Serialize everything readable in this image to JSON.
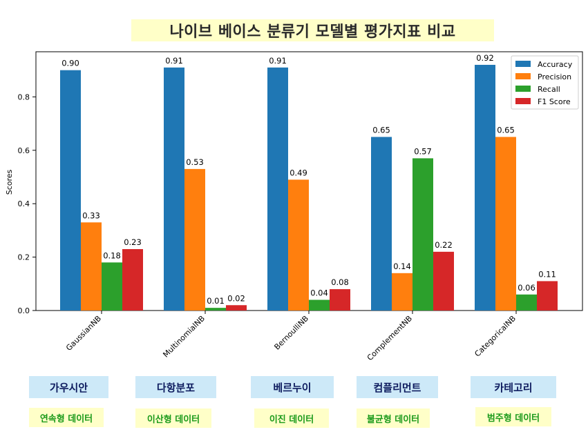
{
  "title": "나이브 베이스 분류기 모델별 평가지표 비교",
  "chart_data": {
    "type": "bar",
    "categories": [
      "GaussianNB",
      "MultinomialNB",
      "BernoulliNB",
      "ComplementNB",
      "CategoricalNB"
    ],
    "series": [
      {
        "name": "Accuracy",
        "color": "#1f77b4",
        "values": [
          0.9,
          0.91,
          0.91,
          0.65,
          0.92
        ],
        "labels": [
          "0.90",
          "0.91",
          "0.91",
          "0.65",
          "0.92"
        ]
      },
      {
        "name": "Precision",
        "color": "#ff7f0e",
        "values": [
          0.33,
          0.53,
          0.49,
          0.14,
          0.65
        ],
        "labels": [
          "0.33",
          "0.53",
          "0.49",
          "0.14",
          "0.65"
        ]
      },
      {
        "name": "Recall",
        "color": "#2ca02c",
        "values": [
          0.18,
          0.01,
          0.04,
          0.57,
          0.06
        ],
        "labels": [
          "0.18",
          "0.01",
          "0.04",
          "0.57",
          "0.06"
        ]
      },
      {
        "name": "F1 Score",
        "color": "#d62728",
        "values": [
          0.23,
          0.02,
          0.08,
          0.22,
          0.11
        ],
        "labels": [
          "0.23",
          "0.02",
          "0.08",
          "0.22",
          "0.11"
        ]
      }
    ],
    "ylabel": "Scores",
    "xlabel": "",
    "ylim": [
      0,
      0.95
    ],
    "yticks": [
      "0.0",
      "0.2",
      "0.4",
      "0.6",
      "0.8"
    ],
    "ytick_values": [
      0.0,
      0.2,
      0.4,
      0.6,
      0.8
    ],
    "legend_position": "top-right",
    "grid": false
  },
  "annotations": {
    "models": [
      "가우시안",
      "다항분포",
      "베르누이",
      "컴플리먼트",
      "카테고리"
    ],
    "data_types": [
      "연속형 데이터",
      "이산형 데이터",
      "이진 데이터",
      "불균형 데이터",
      "범주형 데이터"
    ]
  }
}
